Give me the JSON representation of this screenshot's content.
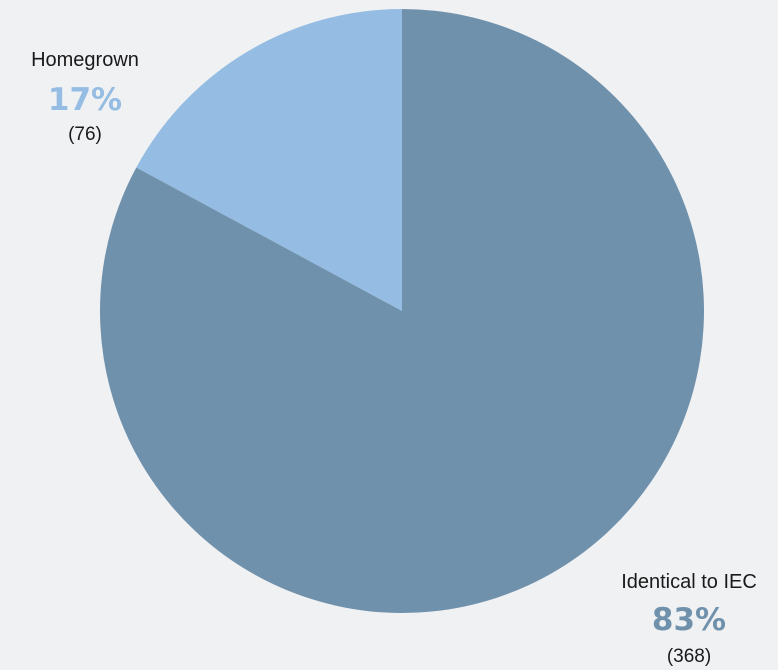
{
  "chart_data": {
    "type": "pie",
    "title": "",
    "start_angle_deg": 0,
    "direction": "counterclockwise",
    "slices": [
      {
        "label": "Homegrown",
        "percent_label": "17%",
        "count_label": "(76)",
        "value": 76,
        "color": "#95bde3"
      },
      {
        "label": "Identical to IEC",
        "percent_label": "83%",
        "count_label": "(368)",
        "value": 368,
        "color": "#7091ac"
      }
    ]
  }
}
